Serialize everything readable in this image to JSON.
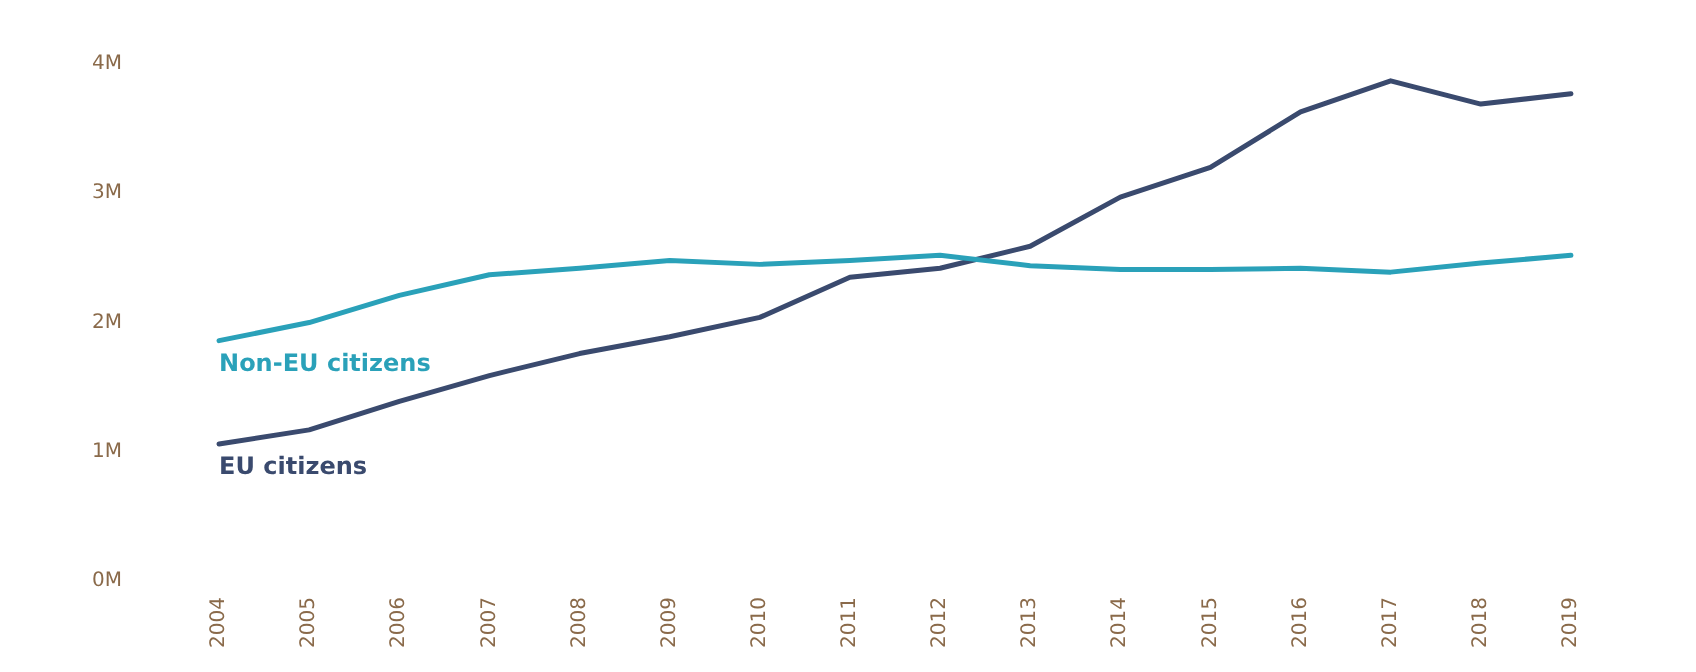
{
  "chart_data": {
    "type": "line",
    "categories": [
      "2004",
      "2005",
      "2006",
      "2007",
      "2008",
      "2009",
      "2010",
      "2011",
      "2012",
      "2013",
      "2014",
      "2015",
      "2016",
      "2017",
      "2018",
      "2019"
    ],
    "series": [
      {
        "name": "Non-EU citizens",
        "color": "#2aa1b9",
        "values": [
          1.86,
          2.0,
          2.21,
          2.37,
          2.42,
          2.48,
          2.45,
          2.48,
          2.52,
          2.44,
          2.41,
          2.41,
          2.42,
          2.39,
          2.46,
          2.52
        ]
      },
      {
        "name": "EU citizens",
        "color": "#3a4a6e",
        "values": [
          1.06,
          1.17,
          1.39,
          1.59,
          1.76,
          1.89,
          2.04,
          2.35,
          2.42,
          2.59,
          2.97,
          3.2,
          3.63,
          3.87,
          3.69,
          3.77
        ]
      }
    ],
    "ylim": [
      0,
      4
    ],
    "yticks": [
      {
        "value": 0,
        "label": "0M"
      },
      {
        "value": 1,
        "label": "1M"
      },
      {
        "value": 2,
        "label": "2M"
      },
      {
        "value": 3,
        "label": "3M"
      },
      {
        "value": 4,
        "label": "4M"
      }
    ],
    "grid": false,
    "legend": false,
    "marker": "none",
    "line_style": "solid"
  }
}
